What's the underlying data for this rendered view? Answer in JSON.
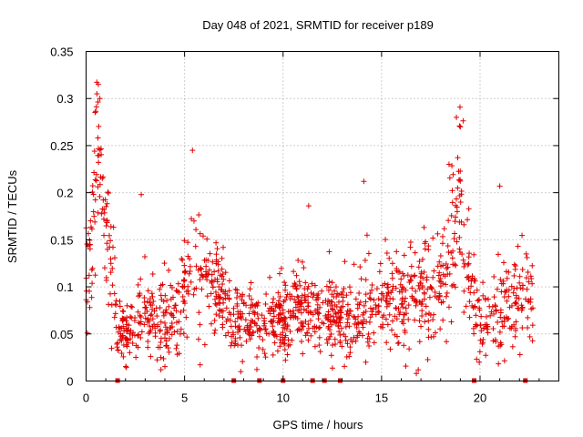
{
  "chart_data": {
    "type": "scatter",
    "title": "Day 048 of 2021, SRMTID for receiver p189",
    "xlabel": "GPS time / hours",
    "ylabel": "SRMTID / TECUs",
    "xlim": [
      0,
      24
    ],
    "ylim": [
      0,
      0.35
    ],
    "grid": true,
    "x_ticks": [
      0,
      5,
      10,
      15,
      20
    ],
    "y_ticks": [
      0,
      0.05,
      0.1,
      0.15,
      0.2,
      0.25,
      0.3,
      0.35
    ],
    "x_tick_labels": [
      "0",
      "5",
      "10",
      "15",
      "20"
    ],
    "y_tick_labels": [
      "0",
      "0.05",
      "0.1",
      "0.15",
      "0.2",
      "0.25",
      "0.3",
      "0.35"
    ],
    "marker": "+",
    "color": "#e00000",
    "n_points": 1400,
    "envelope": {
      "x": [
        0,
        0.3,
        0.6,
        0.9,
        1.2,
        1.5,
        1.6,
        2.2,
        2.8,
        3.5,
        4.0,
        4.5,
        5.0,
        5.5,
        5.8,
        6.3,
        7.0,
        7.4,
        8.0,
        9.0,
        9.8,
        10.5,
        11.0,
        11.5,
        12.0,
        12.7,
        13.5,
        14.0,
        15.0,
        16.0,
        16.8,
        17.5,
        18.0,
        18.6,
        18.9,
        19.3,
        19.7,
        20.0,
        20.5,
        21.0,
        21.5,
        22.0,
        22.5,
        22.7
      ],
      "median": [
        0.11,
        0.16,
        0.24,
        0.19,
        0.13,
        0.08,
        0.055,
        0.055,
        0.07,
        0.065,
        0.06,
        0.075,
        0.09,
        0.13,
        0.12,
        0.1,
        0.085,
        0.07,
        0.065,
        0.065,
        0.06,
        0.075,
        0.075,
        0.07,
        0.07,
        0.07,
        0.06,
        0.07,
        0.085,
        0.085,
        0.09,
        0.095,
        0.11,
        0.16,
        0.2,
        0.12,
        0.08,
        0.06,
        0.07,
        0.075,
        0.08,
        0.08,
        0.1,
        0.09
      ],
      "spread": [
        0.03,
        0.04,
        0.05,
        0.04,
        0.035,
        0.025,
        0.02,
        0.02,
        0.025,
        0.025,
        0.025,
        0.03,
        0.035,
        0.045,
        0.04,
        0.03,
        0.025,
        0.025,
        0.02,
        0.02,
        0.02,
        0.025,
        0.03,
        0.025,
        0.025,
        0.025,
        0.025,
        0.03,
        0.03,
        0.03,
        0.03,
        0.035,
        0.04,
        0.05,
        0.055,
        0.04,
        0.03,
        0.02,
        0.025,
        0.03,
        0.03,
        0.03,
        0.035,
        0.03
      ]
    },
    "outliers": [
      {
        "x": 0.62,
        "y": 0.315
      },
      {
        "x": 0.55,
        "y": 0.305
      },
      {
        "x": 0.7,
        "y": 0.3
      },
      {
        "x": 5.4,
        "y": 0.245
      },
      {
        "x": 2.8,
        "y": 0.198
      },
      {
        "x": 14.1,
        "y": 0.212
      },
      {
        "x": 11.3,
        "y": 0.186
      },
      {
        "x": 18.8,
        "y": 0.28
      },
      {
        "x": 19.0,
        "y": 0.27
      },
      {
        "x": 21.0,
        "y": 0.207
      },
      {
        "x": 3.8,
        "y": 0.012
      },
      {
        "x": 14.2,
        "y": 0.02
      }
    ],
    "baseline_markers": [
      1.6,
      7.5,
      8.8,
      10.0,
      11.5,
      12.1,
      12.9,
      19.7,
      22.3
    ]
  }
}
